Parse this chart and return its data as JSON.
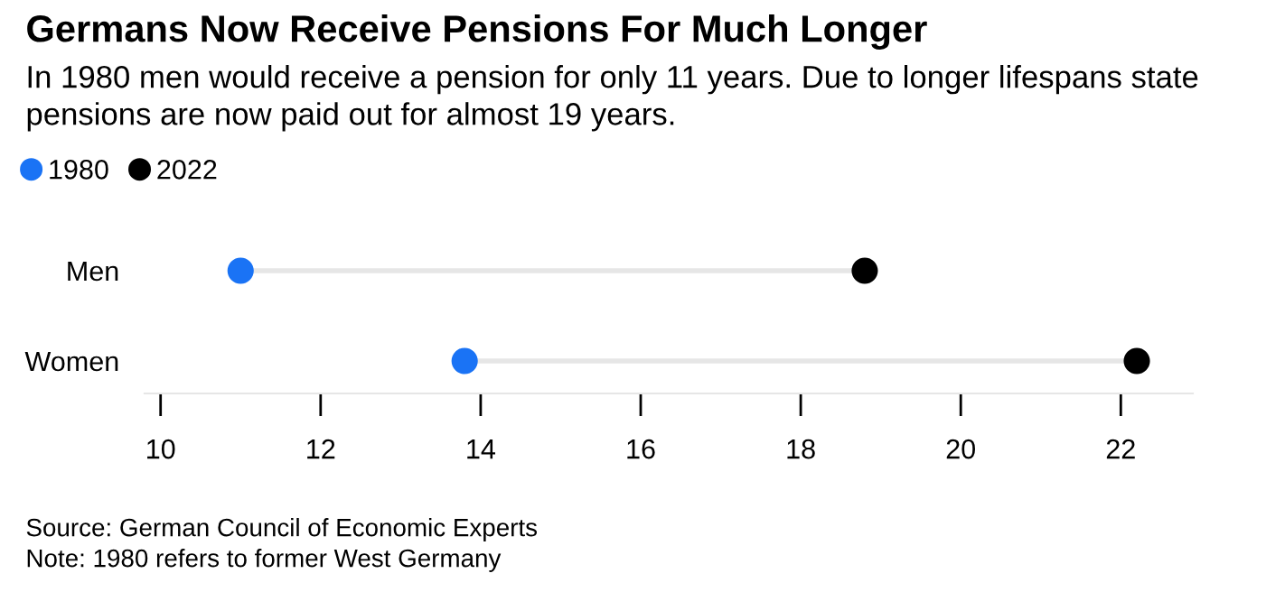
{
  "chart_data": {
    "type": "scatter",
    "orientation": "horizontal",
    "title": "Germans Now Receive Pensions For Much Longer",
    "subtitle": "In 1980 men would receive a pension for only 11 years. Due to longer lifespans state pensions are now paid out for almost 19 years.",
    "categories": [
      "Men",
      "Women"
    ],
    "series": [
      {
        "name": "1980",
        "color": "#1a73f5",
        "values": [
          11.0,
          13.8
        ]
      },
      {
        "name": "2022",
        "color": "#000000",
        "values": [
          18.8,
          22.2
        ]
      }
    ],
    "xlim": [
      9.8,
      22.9
    ],
    "xticks": [
      10,
      12,
      14,
      16,
      18,
      20,
      22
    ],
    "grid": false,
    "legend": "top left",
    "marker": "circle",
    "annotations": [
      "Source: German Council of Economic Experts",
      "Note: 1980 refers to former West Germany"
    ]
  }
}
